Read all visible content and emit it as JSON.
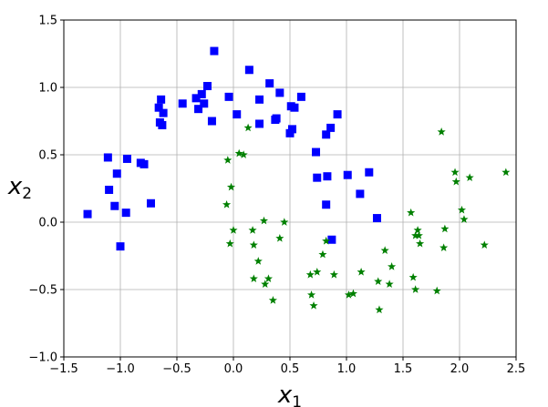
{
  "chart_data": {
    "type": "scatter",
    "title": "",
    "xlabel": "x",
    "xlabel_sub": "1",
    "ylabel": "x",
    "ylabel_sub": "2",
    "xlim": [
      -1.5,
      2.5
    ],
    "ylim": [
      -1.0,
      1.5
    ],
    "xticks": [
      "−1.5",
      "−1.0",
      "−0.5",
      "0.0",
      "0.5",
      "1.0",
      "1.5",
      "2.0",
      "2.5"
    ],
    "yticks": [
      "−1.0",
      "−0.5",
      "0.0",
      "0.5",
      "1.0",
      "1.5"
    ],
    "xtick_values": [
      -1.5,
      -1.0,
      -0.5,
      0.0,
      0.5,
      1.0,
      1.5,
      2.0,
      2.5
    ],
    "ytick_values": [
      -1.0,
      -0.5,
      0.0,
      0.5,
      1.0,
      1.5
    ],
    "grid": true,
    "series": [
      {
        "marker": "square",
        "color": "#0000ff",
        "points": [
          [
            -1.29,
            0.06
          ],
          [
            -1.11,
            0.48
          ],
          [
            -1.1,
            0.24
          ],
          [
            -1.05,
            0.12
          ],
          [
            -1.03,
            0.36
          ],
          [
            -1.0,
            -0.18
          ],
          [
            -0.95,
            0.07
          ],
          [
            -0.94,
            0.47
          ],
          [
            -0.82,
            0.44
          ],
          [
            -0.79,
            0.43
          ],
          [
            -0.73,
            0.14
          ],
          [
            -0.66,
            0.85
          ],
          [
            -0.65,
            0.74
          ],
          [
            -0.64,
            0.91
          ],
          [
            -0.63,
            0.72
          ],
          [
            -0.62,
            0.81
          ],
          [
            -0.45,
            0.88
          ],
          [
            -0.33,
            0.92
          ],
          [
            -0.31,
            0.84
          ],
          [
            -0.28,
            0.95
          ],
          [
            -0.26,
            0.88
          ],
          [
            -0.23,
            1.01
          ],
          [
            -0.19,
            0.75
          ],
          [
            -0.17,
            1.27
          ],
          [
            -0.04,
            0.93
          ],
          [
            0.03,
            0.8
          ],
          [
            0.14,
            1.13
          ],
          [
            0.23,
            0.73
          ],
          [
            0.23,
            0.91
          ],
          [
            0.32,
            1.03
          ],
          [
            0.37,
            0.76
          ],
          [
            0.38,
            0.77
          ],
          [
            0.41,
            0.96
          ],
          [
            0.5,
            0.66
          ],
          [
            0.51,
            0.86
          ],
          [
            0.52,
            0.69
          ],
          [
            0.54,
            0.85
          ],
          [
            0.6,
            0.93
          ],
          [
            0.73,
            0.52
          ],
          [
            0.74,
            0.33
          ],
          [
            0.82,
            0.65
          ],
          [
            0.83,
            0.34
          ],
          [
            0.82,
            0.13
          ],
          [
            0.86,
            0.7
          ],
          [
            0.87,
            -0.13
          ],
          [
            0.92,
            0.8
          ],
          [
            1.01,
            0.35
          ],
          [
            1.12,
            0.21
          ],
          [
            1.2,
            0.37
          ],
          [
            1.27,
            0.03
          ]
        ]
      },
      {
        "marker": "star",
        "color": "#008000",
        "points": [
          [
            -0.06,
            0.13
          ],
          [
            -0.05,
            0.46
          ],
          [
            -0.03,
            -0.16
          ],
          [
            -0.02,
            0.26
          ],
          [
            0.0,
            -0.06
          ],
          [
            0.05,
            0.51
          ],
          [
            0.09,
            0.5
          ],
          [
            0.13,
            0.7
          ],
          [
            0.17,
            -0.06
          ],
          [
            0.18,
            -0.42
          ],
          [
            0.18,
            -0.17
          ],
          [
            0.22,
            -0.29
          ],
          [
            0.27,
            0.01
          ],
          [
            0.28,
            -0.46
          ],
          [
            0.31,
            -0.42
          ],
          [
            0.35,
            -0.58
          ],
          [
            0.41,
            -0.12
          ],
          [
            0.45,
            0.0
          ],
          [
            0.68,
            -0.39
          ],
          [
            0.69,
            -0.54
          ],
          [
            0.71,
            -0.62
          ],
          [
            0.74,
            -0.37
          ],
          [
            0.79,
            -0.24
          ],
          [
            0.82,
            -0.14
          ],
          [
            0.89,
            -0.39
          ],
          [
            1.02,
            -0.54
          ],
          [
            1.06,
            -0.53
          ],
          [
            1.13,
            -0.37
          ],
          [
            1.28,
            -0.44
          ],
          [
            1.29,
            -0.65
          ],
          [
            1.34,
            -0.21
          ],
          [
            1.38,
            -0.46
          ],
          [
            1.4,
            -0.33
          ],
          [
            1.57,
            0.07
          ],
          [
            1.59,
            -0.41
          ],
          [
            1.61,
            -0.1
          ],
          [
            1.61,
            -0.5
          ],
          [
            1.63,
            -0.06
          ],
          [
            1.64,
            -0.1
          ],
          [
            1.65,
            -0.16
          ],
          [
            1.8,
            -0.51
          ],
          [
            1.84,
            0.67
          ],
          [
            1.86,
            -0.19
          ],
          [
            1.87,
            -0.05
          ],
          [
            1.96,
            0.37
          ],
          [
            1.97,
            0.3
          ],
          [
            2.02,
            0.09
          ],
          [
            2.04,
            0.02
          ],
          [
            2.09,
            0.33
          ],
          [
            2.22,
            -0.17
          ],
          [
            2.41,
            0.37
          ]
        ]
      }
    ]
  }
}
